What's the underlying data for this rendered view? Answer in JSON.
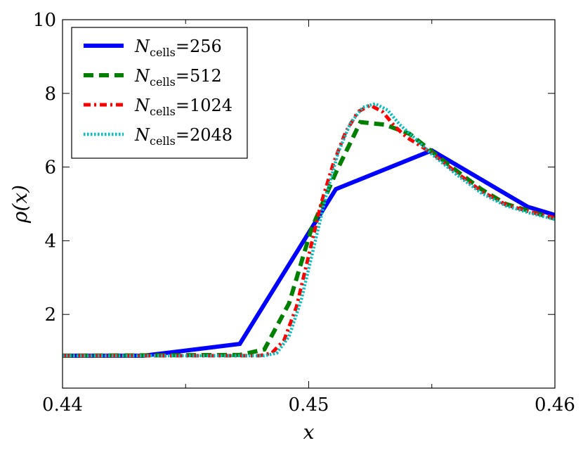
{
  "chart_data": {
    "type": "line",
    "title": "",
    "xlabel": "x",
    "ylabel": "ρ(x)",
    "xlim": [
      0.44,
      0.46
    ],
    "ylim": [
      0,
      10
    ],
    "x_ticks": [
      0.44,
      0.45,
      0.46
    ],
    "x_tick_labels": [
      "0.44",
      "0.45",
      "0.46"
    ],
    "x_minor_ticks": [
      0.445,
      0.455
    ],
    "y_ticks": [
      2,
      4,
      6,
      8,
      10
    ],
    "y_tick_labels": [
      "2",
      "4",
      "6",
      "8",
      "10"
    ],
    "grid": false,
    "legend_position": "top-left",
    "series": [
      {
        "name": "N_cells=256",
        "legend_base": "N",
        "legend_sub": "cells",
        "legend_value": "=256",
        "color": "#0000ff",
        "style": "solid",
        "x": [
          0.44,
          0.4433,
          0.4472,
          0.4511,
          0.455,
          0.4589,
          0.46
        ],
        "y": [
          0.88,
          0.88,
          1.2,
          5.4,
          6.45,
          4.92,
          4.7
        ]
      },
      {
        "name": "N_cells=512",
        "legend_base": "N",
        "legend_sub": "cells",
        "legend_value": "=512",
        "color": "#008000",
        "style": "dashed",
        "x": [
          0.44,
          0.4472,
          0.4482,
          0.4492,
          0.4501,
          0.4511,
          0.4521,
          0.4531,
          0.4541,
          0.455,
          0.456,
          0.457,
          0.458,
          0.4589,
          0.46
        ],
        "y": [
          0.88,
          0.9,
          1.05,
          2.3,
          4.3,
          5.85,
          7.22,
          7.15,
          6.9,
          6.42,
          5.9,
          5.4,
          5.0,
          4.82,
          4.6
        ]
      },
      {
        "name": "N_cells=1024",
        "legend_base": "N",
        "legend_sub": "cells",
        "legend_value": "=1024",
        "color": "#ff0000",
        "style": "dashdot",
        "x": [
          0.44,
          0.448,
          0.4485,
          0.449,
          0.4495,
          0.45,
          0.4505,
          0.451,
          0.4515,
          0.452,
          0.4525,
          0.453,
          0.4535,
          0.454,
          0.455,
          0.456,
          0.457,
          0.458,
          0.459,
          0.46
        ],
        "y": [
          0.88,
          0.88,
          0.95,
          1.3,
          2.2,
          3.6,
          5.0,
          6.1,
          6.95,
          7.5,
          7.68,
          7.5,
          7.1,
          6.8,
          6.38,
          5.85,
          5.35,
          4.98,
          4.78,
          4.62
        ]
      },
      {
        "name": "N_cells=2048",
        "legend_base": "N",
        "legend_sub": "cells",
        "legend_value": "=2048",
        "color": "#00bfbf",
        "style": "dotted",
        "x": [
          0.44,
          0.4482,
          0.4487,
          0.4492,
          0.4497,
          0.4502,
          0.4507,
          0.4512,
          0.4517,
          0.4522,
          0.4527,
          0.4532,
          0.4537,
          0.4542,
          0.455,
          0.456,
          0.457,
          0.458,
          0.459,
          0.46
        ],
        "y": [
          0.88,
          0.88,
          0.95,
          1.4,
          2.4,
          3.8,
          5.2,
          6.4,
          7.2,
          7.62,
          7.72,
          7.55,
          7.15,
          6.85,
          6.35,
          5.8,
          5.3,
          4.95,
          4.75,
          4.58
        ]
      }
    ]
  }
}
